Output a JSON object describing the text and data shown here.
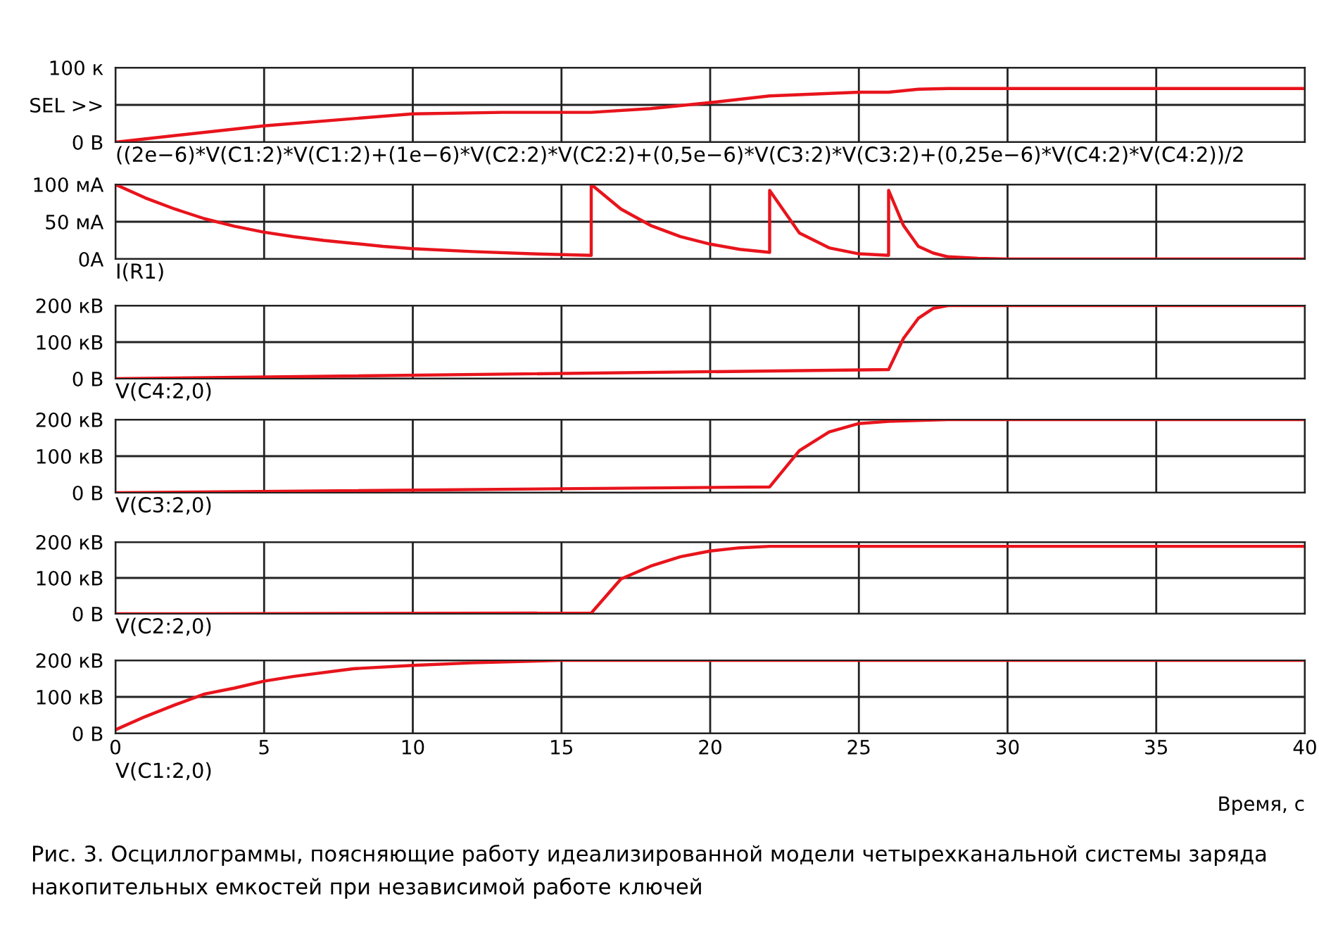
{
  "chart_data": [
    {
      "type": "line",
      "xlabel": "((2e−6)*V(C1:2)*V(C1:2)+(1e−6)*V(C2:2)*V(C2:2)+(0,5e−6)*V(C3:2)*V(C3:2)+(0,25e−6)*V(C4:2)*V(C4:2))/2",
      "xlim": [
        0,
        40
      ],
      "xticks": [
        0,
        5,
        10,
        15,
        20,
        25,
        30,
        35,
        40
      ],
      "ylim": [
        0,
        100
      ],
      "yticks": [
        {
          "value": 0,
          "label": "0 В"
        },
        {
          "value": 50,
          "label": "SEL >>"
        },
        {
          "value": 100,
          "label": "100 к"
        }
      ],
      "grid": true,
      "tick_labels": "y",
      "series": [
        {
          "color": "#e8141c",
          "x": [
            0,
            5,
            10,
            13,
            16,
            18,
            20,
            22,
            25,
            26,
            27,
            28,
            30,
            40
          ],
          "values": [
            0,
            22,
            38,
            40,
            40,
            45,
            53,
            62,
            67,
            67,
            71,
            72,
            72,
            72
          ]
        }
      ]
    },
    {
      "type": "line",
      "xlabel": "I(R1)",
      "xlim": [
        0,
        40
      ],
      "xticks": [
        0,
        5,
        10,
        15,
        20,
        25,
        30,
        35,
        40
      ],
      "ylim": [
        0,
        100
      ],
      "yticks": [
        {
          "value": 0,
          "label": "0A"
        },
        {
          "value": 50,
          "label": "50 мА"
        },
        {
          "value": 100,
          "label": "100 мА"
        }
      ],
      "grid": true,
      "tick_labels": "y",
      "series": [
        {
          "color": "#e8141c",
          "x": [
            0,
            1,
            2,
            3,
            4,
            5,
            6,
            7,
            8,
            9,
            10,
            12,
            14,
            16,
            16,
            17,
            18,
            19,
            20,
            21,
            22,
            22,
            23,
            24,
            25,
            26,
            26,
            26.5,
            27,
            27.5,
            28,
            29,
            30,
            40
          ],
          "values": [
            100,
            82,
            67,
            54,
            44,
            36,
            30,
            25,
            21,
            17,
            14,
            10,
            7,
            5,
            100,
            67,
            45,
            30,
            20,
            13,
            9,
            92,
            35,
            15,
            7,
            5,
            92,
            45,
            17,
            8,
            3,
            1,
            0,
            0
          ]
        }
      ]
    },
    {
      "type": "line",
      "xlabel": "V(C4:2,0)",
      "xlim": [
        0,
        40
      ],
      "xticks": [
        0,
        5,
        10,
        15,
        20,
        25,
        30,
        35,
        40
      ],
      "ylim": [
        0,
        200
      ],
      "yticks": [
        {
          "value": 0,
          "label": "0 В"
        },
        {
          "value": 100,
          "label": "100 кВ"
        },
        {
          "value": 200,
          "label": "200 кВ"
        }
      ],
      "grid": true,
      "tick_labels": "y",
      "series": [
        {
          "color": "#e8141c",
          "x": [
            0,
            26,
            26.5,
            27,
            27.5,
            28,
            40
          ],
          "values": [
            0,
            25,
            110,
            165,
            192,
            200,
            200
          ]
        }
      ]
    },
    {
      "type": "line",
      "xlabel": "V(C3:2,0)",
      "xlim": [
        0,
        40
      ],
      "xticks": [
        0,
        5,
        10,
        15,
        20,
        25,
        30,
        35,
        40
      ],
      "ylim": [
        0,
        200
      ],
      "yticks": [
        {
          "value": 0,
          "label": "0 В"
        },
        {
          "value": 100,
          "label": "100 кВ"
        },
        {
          "value": 200,
          "label": "200 кВ"
        }
      ],
      "grid": true,
      "tick_labels": "y",
      "series": [
        {
          "color": "#e8141c",
          "x": [
            0,
            22,
            23,
            24,
            25,
            26,
            28,
            40
          ],
          "values": [
            0,
            16,
            115,
            166,
            189,
            195,
            200,
            200
          ]
        }
      ]
    },
    {
      "type": "line",
      "xlabel": "V(C2:2,0)",
      "xlim": [
        0,
        40
      ],
      "xticks": [
        0,
        5,
        10,
        15,
        20,
        25,
        30,
        35,
        40
      ],
      "ylim": [
        0,
        200
      ],
      "yticks": [
        {
          "value": 0,
          "label": "0 В"
        },
        {
          "value": 100,
          "label": "100 кВ"
        },
        {
          "value": 200,
          "label": "200 кВ"
        }
      ],
      "grid": true,
      "tick_labels": "y",
      "series": [
        {
          "color": "#e8141c",
          "x": [
            0,
            16,
            17,
            18,
            19,
            20,
            21,
            22,
            40
          ],
          "values": [
            0,
            2,
            97,
            133,
            159,
            175,
            184,
            188,
            188
          ]
        }
      ]
    },
    {
      "type": "line",
      "xlabel": "V(C1:2,0)",
      "xlim": [
        0,
        40
      ],
      "xticks": [
        0,
        5,
        10,
        15,
        20,
        25,
        30,
        35,
        40
      ],
      "ylim": [
        0,
        200
      ],
      "yticks": [
        {
          "value": 0,
          "label": "0 В"
        },
        {
          "value": 100,
          "label": "100 кВ"
        },
        {
          "value": 200,
          "label": "200 кВ"
        }
      ],
      "grid": true,
      "annotations": [
        "Время, с",
        "Рис. 3. Осциллограммы, поясняющие работу идеализированной модели четырехканальной системы заряда накопительных емкостей при независимой работе ключей"
      ],
      "series": [
        {
          "color": "#e8141c",
          "x": [
            0,
            1,
            2,
            3,
            4,
            5,
            6,
            8,
            10,
            12,
            15,
            40
          ],
          "values": [
            10,
            46,
            78,
            108,
            124,
            143,
            156,
            177,
            186,
            193,
            200,
            200
          ]
        }
      ]
    }
  ]
}
